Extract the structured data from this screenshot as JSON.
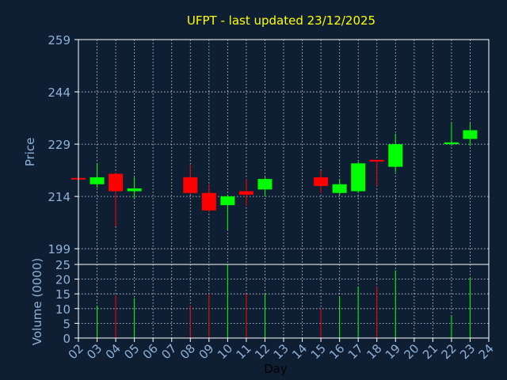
{
  "chart_data": {
    "type": "candlestick",
    "title": "UFPT - last updated 23/12/2025",
    "xlabel": "Day",
    "price_panel": {
      "ylabel": "Price",
      "yticks": [
        199,
        214,
        229,
        244,
        259
      ],
      "ylim": [
        194.5,
        259
      ]
    },
    "volume_panel": {
      "ylabel": "Volume (0000)",
      "yticks": [
        0,
        5,
        10,
        15,
        20,
        25
      ],
      "ylim": [
        0,
        25
      ]
    },
    "x_tick_labels": [
      "02",
      "03",
      "04",
      "05",
      "06",
      "07",
      "08",
      "09",
      "10",
      "11",
      "12",
      "13",
      "14",
      "15",
      "16",
      "17",
      "18",
      "19",
      "20",
      "21",
      "22",
      "23",
      "24"
    ],
    "candles": [
      {
        "day": "02",
        "open": 219.3,
        "high": 219.5,
        "low": 219.0,
        "close": 218.9,
        "volume": 0
      },
      {
        "day": "03",
        "open": 217.5,
        "high": 223.5,
        "low": 216.5,
        "close": 219.5,
        "volume": 11
      },
      {
        "day": "04",
        "open": 220.5,
        "high": 220.8,
        "low": 205.5,
        "close": 215.5,
        "volume": 14.5
      },
      {
        "day": "05",
        "open": 215.5,
        "high": 219.5,
        "low": 213.5,
        "close": 216.3,
        "volume": 13.5
      },
      {
        "day": "08",
        "open": 219.5,
        "high": 223.0,
        "low": 214.5,
        "close": 215.0,
        "volume": 11
      },
      {
        "day": "09",
        "open": 215.0,
        "high": 217.5,
        "low": 209.5,
        "close": 210.0,
        "volume": 15
      },
      {
        "day": "10",
        "open": 211.5,
        "high": 214.5,
        "low": 204.5,
        "close": 214.0,
        "volume": 25
      },
      {
        "day": "11",
        "open": 215.5,
        "high": 219.0,
        "low": 211.5,
        "close": 214.5,
        "volume": 15
      },
      {
        "day": "12",
        "open": 216.0,
        "high": 219.5,
        "low": 214.0,
        "close": 219.0,
        "volume": 15
      },
      {
        "day": "15",
        "open": 219.5,
        "high": 221.5,
        "low": 215.0,
        "close": 217.0,
        "volume": 10
      },
      {
        "day": "16",
        "open": 215.0,
        "high": 219.0,
        "low": 214.5,
        "close": 217.5,
        "volume": 14
      },
      {
        "day": "17",
        "open": 215.5,
        "high": 224.0,
        "low": 215.0,
        "close": 223.5,
        "volume": 17.5
      },
      {
        "day": "18",
        "open": 224.5,
        "high": 224.5,
        "low": 217.0,
        "close": 224.0,
        "volume": 17.5
      },
      {
        "day": "19",
        "open": 222.5,
        "high": 232.0,
        "low": 221.0,
        "close": 229.0,
        "volume": 23
      },
      {
        "day": "22",
        "open": 229.0,
        "high": 235.0,
        "low": 228.5,
        "close": 229.5,
        "volume": 7.5
      },
      {
        "day": "23",
        "open": 230.5,
        "high": 235.0,
        "low": 228.5,
        "close": 233.0,
        "volume": 20.5
      }
    ],
    "colors": {
      "background": "#0f1f33",
      "plot_background": "#0f1f33",
      "frame": "#ffffff",
      "grid": "#ffffff",
      "title": "#ffff00",
      "axis_text": "#8fb2d8",
      "xlabel": "#000000",
      "up": "#00ff00",
      "down": "#ff0000"
    },
    "grid": true
  }
}
